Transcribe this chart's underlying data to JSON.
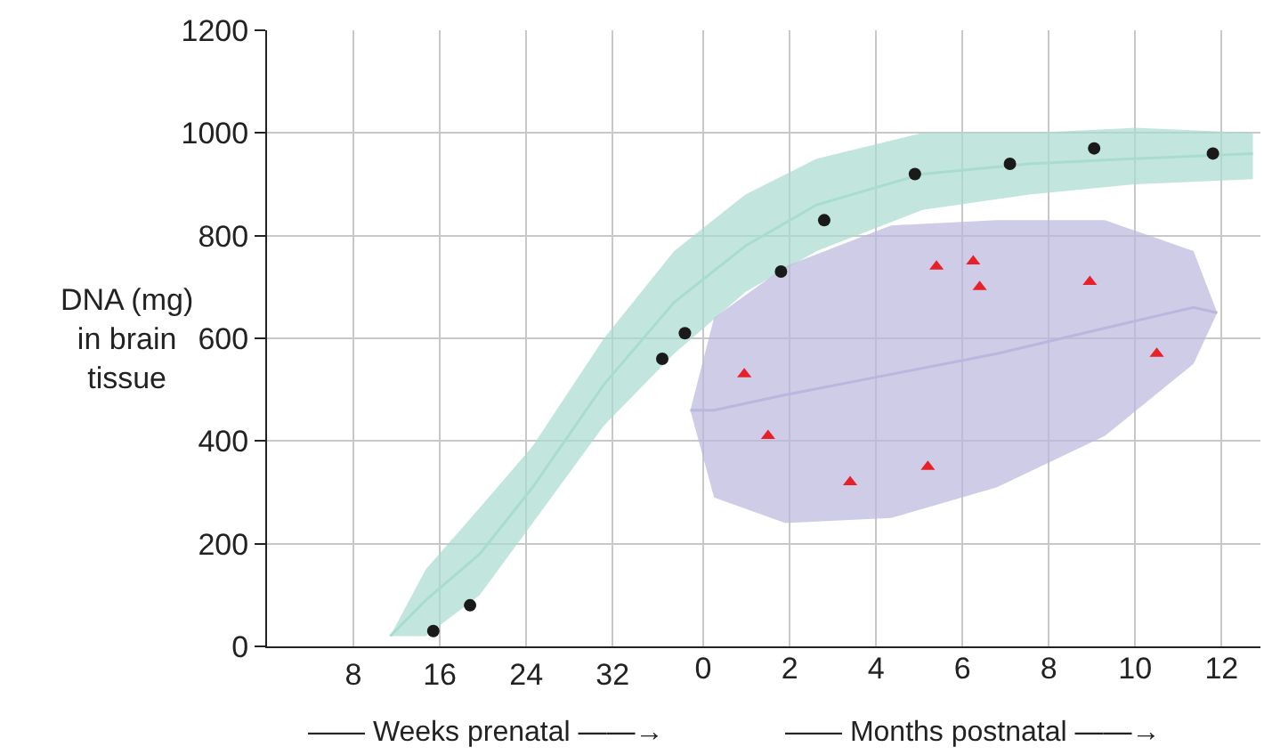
{
  "chart_data": {
    "type": "scatter",
    "ylabel": "DNA (mg)\nin brain\ntissue",
    "annotations": [
      "—— Weeks prenatal ——→",
      "—— Months postnatal ——→"
    ],
    "xlim": [
      0,
      92
    ],
    "x2lim": [
      -10.1,
      12.9
    ],
    "ylim": [
      0,
      1200
    ],
    "xticks": [
      8,
      16,
      24,
      32
    ],
    "x2ticks": [
      0,
      2,
      4,
      6,
      8,
      10,
      12
    ],
    "yticks": [
      0,
      200,
      400,
      600,
      800,
      1000,
      1200
    ],
    "grid": true,
    "series": [
      {
        "type": "line",
        "marker": "none",
        "color": "#a8dccf",
        "x": [
          11.4,
          14.7,
          19.7,
          24.6,
          31.2,
          37.7,
          44.3,
          50.9,
          60.7,
          70.6,
          80.4,
          91.3
        ],
        "values": [
          20,
          90,
          180,
          310,
          510,
          670,
          780,
          860,
          920,
          940,
          950,
          960
        ],
        "lower": [
          20,
          20,
          100,
          240,
          430,
          570,
          690,
          770,
          850,
          880,
          900,
          910
        ],
        "upper": [
          20,
          150,
          270,
          390,
          600,
          770,
          880,
          950,
          1000,
          1000,
          1010,
          1000
        ]
      },
      {
        "type": "line",
        "marker": "none",
        "axis": "x2",
        "color": "#bab6de",
        "x": [
          -0.3,
          0.25,
          1.9,
          4.35,
          6.8,
          9.3,
          11.35,
          11.9
        ],
        "values": [
          460,
          460,
          490,
          530,
          570,
          620,
          660,
          650
        ],
        "lower": [
          460,
          290,
          240,
          250,
          310,
          410,
          550,
          650
        ],
        "upper": [
          460,
          640,
          740,
          820,
          830,
          830,
          770,
          650
        ]
      },
      {
        "marker": "circle",
        "color": "#1a1a1a",
        "x": [
          15.4,
          18.8,
          36.6,
          38.7
        ],
        "values": [
          30,
          80,
          560,
          610
        ]
      },
      {
        "axis": "x2",
        "marker": "circle",
        "color": "#1a1a1a",
        "x": [
          1.8,
          2.8,
          4.9,
          7.1,
          9.05,
          11.8
        ],
        "values": [
          730,
          830,
          920,
          940,
          970,
          960
        ]
      },
      {
        "axis": "x2",
        "marker": "triangle",
        "color": "#e8202a",
        "x": [
          0.95,
          1.5,
          3.4,
          5.2,
          5.4,
          6.25,
          6.4,
          8.95,
          10.5
        ],
        "values": [
          530,
          410,
          320,
          350,
          740,
          750,
          700,
          710,
          570
        ]
      }
    ]
  }
}
